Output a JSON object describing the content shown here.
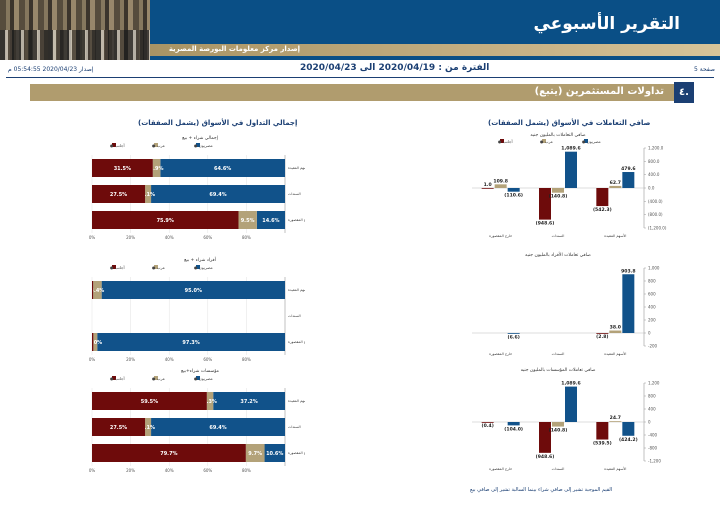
{
  "header": {
    "title": "التقرير الأسبوعي",
    "issuer": "إصدار مركز معلومات البورصة المصرية",
    "page": "صفحة 5",
    "period": "الفترة من : 2020/04/19 الى 2020/04/23",
    "issued": "إصدار 2020/04/23 05:54:55 م"
  },
  "section": {
    "number": "٤.",
    "title": "تداولات المستثمرين (يتبع)"
  },
  "columns": {
    "left_title": "إجمالي التداول في الأسواق (يشمل الصفقات)",
    "right_title": "صافي التعاملات في الأسواق (يشمل الصفقات)"
  },
  "footnote": "القيم الموجبة تشير إلى صافي شراء بينما السالبة تشير إلى صافي بيع",
  "colors": {
    "navy": "#11528a",
    "maroon": "#6e0b0b",
    "beige": "#b3a279",
    "band": "#b09c6e"
  },
  "chart_data": [
    {
      "type": "bar",
      "orientation": "horizontal",
      "stacked": true,
      "title": "إجمالي شراء + بيع",
      "categories": [
        "الأسهم المقيدة",
        "السندات",
        "خارج المقصورة"
      ],
      "legend": [
        "مصريون",
        "عرب",
        "أجانب"
      ],
      "legend_placement": "top",
      "series": [
        {
          "name": "مصريون",
          "color": "#11528a",
          "values": [
            64.6,
            69.4,
            14.6
          ]
        },
        {
          "name": "عرب",
          "color": "#b3a279",
          "values": [
            3.9,
            3.1,
            9.5
          ]
        },
        {
          "name": "أجانب",
          "color": "#6e0b0b",
          "values": [
            31.5,
            27.5,
            75.9
          ]
        }
      ],
      "xticks": [
        "80%",
        "60%",
        "40%",
        "20%",
        "0%"
      ],
      "xlim": [
        0,
        100
      ]
    },
    {
      "type": "bar",
      "orientation": "horizontal",
      "stacked": true,
      "title": "أفراد شراء + بيع",
      "categories": [
        "الأسهم المقيدة",
        "السندات",
        "خارج المقصورة"
      ],
      "legend": [
        "مصريون",
        "عرب",
        "أجانب"
      ],
      "legend_placement": "top",
      "series": [
        {
          "name": "مصريون",
          "color": "#11528a",
          "values": [
            95.0,
            0,
            97.3
          ]
        },
        {
          "name": "عرب",
          "color": "#b3a279",
          "values": [
            4.4,
            0,
            2.0
          ]
        },
        {
          "name": "أجانب",
          "color": "#6e0b0b",
          "values": [
            0.6,
            0,
            0.7
          ]
        }
      ],
      "xticks": [
        "80%",
        "60%",
        "40%",
        "20%",
        "0%"
      ],
      "xlim": [
        0,
        100
      ]
    },
    {
      "type": "bar",
      "orientation": "horizontal",
      "stacked": true,
      "title": "مؤسسات شراء+بيع",
      "categories": [
        "الأسهم المقيدة",
        "السندات",
        "خارج المقصورة"
      ],
      "legend": [
        "مصريون",
        "عرب",
        "أجانب"
      ],
      "legend_placement": "top",
      "series": [
        {
          "name": "مصريون",
          "color": "#11528a",
          "values": [
            37.2,
            69.4,
            10.6
          ]
        },
        {
          "name": "عرب",
          "color": "#b3a279",
          "values": [
            3.3,
            3.1,
            9.7
          ]
        },
        {
          "name": "أجانب",
          "color": "#6e0b0b",
          "values": [
            59.5,
            27.5,
            79.7
          ]
        }
      ],
      "xticks": [
        "80%",
        "60%",
        "40%",
        "20%",
        "0%"
      ],
      "xlim": [
        0,
        100
      ]
    },
    {
      "type": "bar",
      "orientation": "vertical",
      "title": "صافي التعاملات بالمليون جنيه",
      "categories": [
        "الأسهم المقيدة",
        "السندات",
        "خارج المقصورة"
      ],
      "legend": [
        "مصريون",
        "عرب",
        "أجانب"
      ],
      "legend_placement": "top",
      "series": [
        {
          "name": "مصريون",
          "color": "#11528a",
          "values": [
            479.6,
            1089.6,
            -110.6
          ]
        },
        {
          "name": "عرب",
          "color": "#b3a279",
          "values": [
            62.7,
            -140.8,
            109.8
          ]
        },
        {
          "name": "أجانب",
          "color": "#6e0b0b",
          "values": [
            -542.3,
            -948.6,
            1.0
          ]
        }
      ],
      "value_labels": [
        [
          "479.6",
          "62.7",
          "(542.3)"
        ],
        [
          "1,089.6",
          "(140.8)",
          "(948.6)"
        ],
        [
          "(110.6)",
          "109.8",
          "1.0"
        ]
      ],
      "ylim": [
        -1200,
        1200
      ],
      "yticks": [
        "1,200.0",
        "800.0",
        "400.0",
        "0.0",
        "(400.0)",
        "(800.0)",
        "(1,200.0)"
      ]
    },
    {
      "type": "bar",
      "orientation": "vertical",
      "title": "صافي تعاملات الأفراد بالمليون جنيه",
      "categories": [
        "الأسهم المقيدة",
        "السندات",
        "خارج المقصورة"
      ],
      "series": [
        {
          "name": "مصريون",
          "color": "#11528a",
          "values": [
            903.8,
            0,
            -6.6
          ]
        },
        {
          "name": "عرب",
          "color": "#b3a279",
          "values": [
            38.0,
            0,
            0
          ]
        },
        {
          "name": "أجانب",
          "color": "#6e0b0b",
          "values": [
            -2.8,
            0,
            0
          ]
        }
      ],
      "value_labels": [
        [
          "903.8",
          "38.0",
          "(2.8)"
        ],
        [
          "",
          "",
          ""
        ],
        [
          "(6.6)",
          "",
          ""
        ]
      ],
      "ylim": [
        -200,
        1000
      ],
      "yticks": [
        "1,000",
        "800",
        "600",
        "400",
        "200",
        "0",
        "-200"
      ]
    },
    {
      "type": "bar",
      "orientation": "vertical",
      "title": "صافي تعاملات المؤسسات بالمليون جنيه",
      "categories": [
        "الأسهم المقيدة",
        "السندات",
        "خارج المقصورة"
      ],
      "series": [
        {
          "name": "مصريون",
          "color": "#11528a",
          "values": [
            -424.2,
            1089.6,
            -104.0
          ]
        },
        {
          "name": "عرب",
          "color": "#b3a279",
          "values": [
            24.7,
            -140.8,
            0
          ]
        },
        {
          "name": "أجانب",
          "color": "#6e0b0b",
          "values": [
            -539.5,
            -948.6,
            -0.4
          ]
        }
      ],
      "value_labels": [
        [
          "(424.2)",
          "24.7",
          "(539.5)"
        ],
        [
          "1,089.6",
          "(140.8)",
          "(948.6)"
        ],
        [
          "(104.0)",
          "",
          "(0.4)"
        ]
      ],
      "ylim": [
        -1200,
        1200
      ],
      "yticks": [
        "1,200",
        "800",
        "400",
        "0",
        "-400",
        "-800",
        "-1,200"
      ]
    }
  ]
}
